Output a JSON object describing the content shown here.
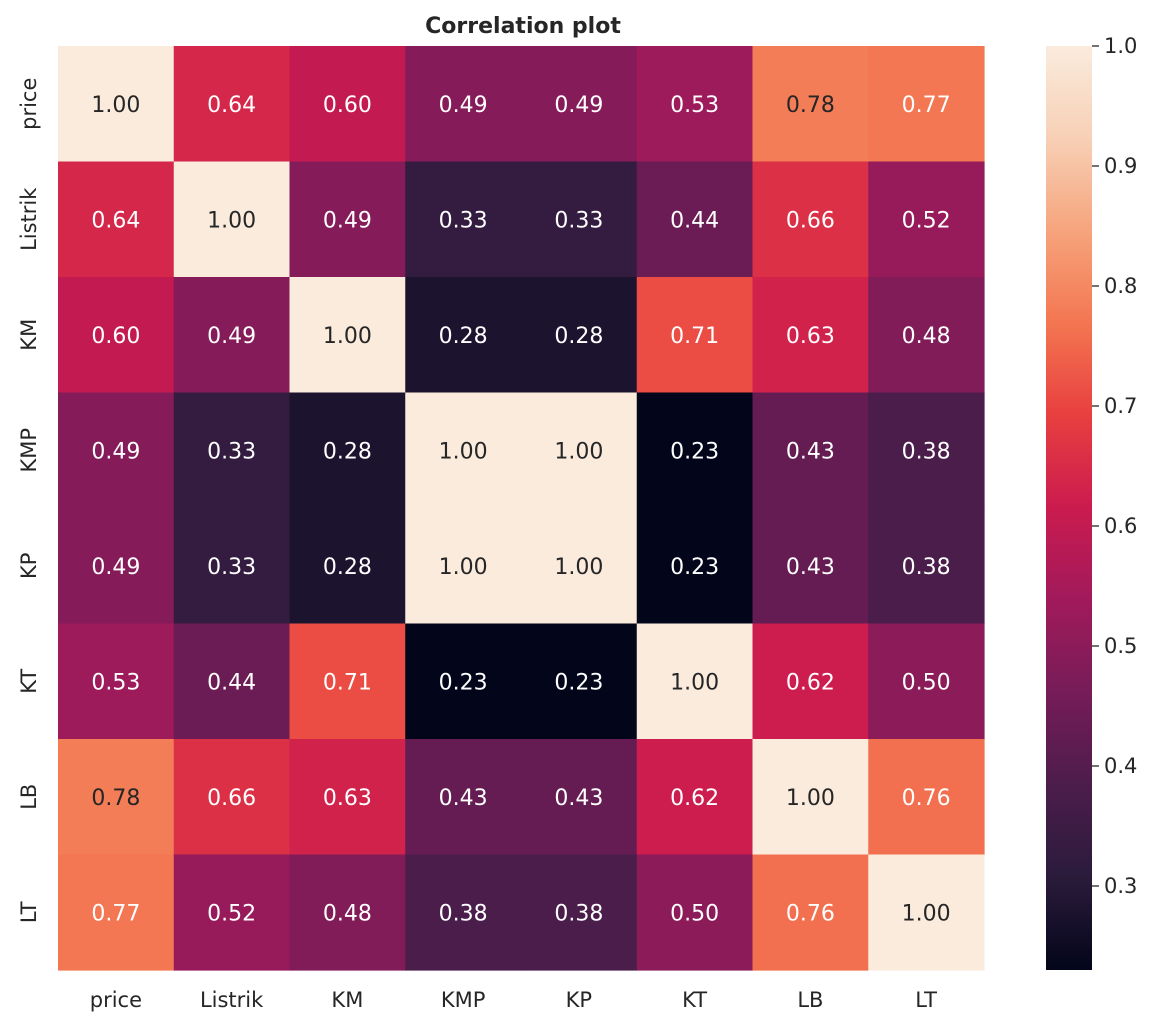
{
  "chart_data": {
    "type": "heatmap",
    "title": "Correlation plot",
    "x_labels": [
      "price",
      "Listrik",
      "KM",
      "KMP",
      "KP",
      "KT",
      "LB",
      "LT"
    ],
    "y_labels": [
      "price",
      "Listrik",
      "KM",
      "KMP",
      "KP",
      "KT",
      "LB",
      "LT"
    ],
    "values": [
      [
        1.0,
        0.64,
        0.6,
        0.49,
        0.49,
        0.53,
        0.78,
        0.77
      ],
      [
        0.64,
        1.0,
        0.49,
        0.33,
        0.33,
        0.44,
        0.66,
        0.52
      ],
      [
        0.6,
        0.49,
        1.0,
        0.28,
        0.28,
        0.71,
        0.63,
        0.48
      ],
      [
        0.49,
        0.33,
        0.28,
        1.0,
        1.0,
        0.23,
        0.43,
        0.38
      ],
      [
        0.49,
        0.33,
        0.28,
        1.0,
        1.0,
        0.23,
        0.43,
        0.38
      ],
      [
        0.53,
        0.44,
        0.71,
        0.23,
        0.23,
        1.0,
        0.62,
        0.5
      ],
      [
        0.78,
        0.66,
        0.63,
        0.43,
        0.43,
        0.62,
        1.0,
        0.76
      ],
      [
        0.77,
        0.52,
        0.48,
        0.38,
        0.38,
        0.5,
        0.76,
        1.0
      ]
    ],
    "value_format": "0.00",
    "colorbar": {
      "min": 0.23,
      "max": 1.0,
      "ticks": [
        "0.3",
        "0.4",
        "0.5",
        "0.6",
        "0.7",
        "0.8",
        "0.9",
        "1.0"
      ],
      "colormap": "rocket",
      "colormap_stops": [
        "#03051a",
        "#2a1b3b",
        "#4c1d4b",
        "#761c58",
        "#a11a5b",
        "#cb1b4f",
        "#e83f3f",
        "#f37651",
        "#f6a47c",
        "#f7d0b6",
        "#faebdd"
      ]
    },
    "grid": false
  }
}
